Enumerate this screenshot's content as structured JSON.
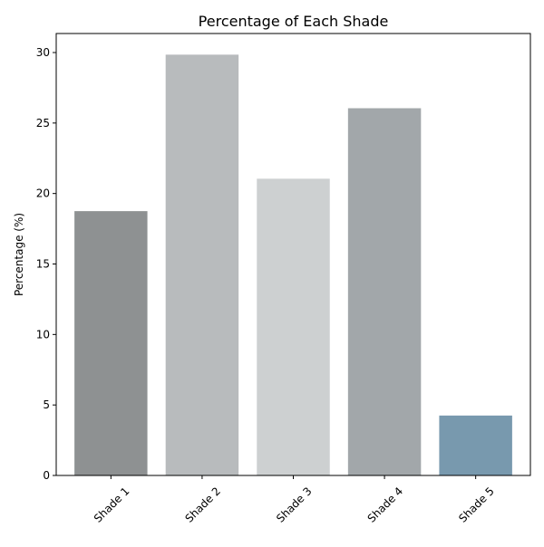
{
  "chart_data": {
    "type": "bar",
    "title": "Percentage of Each Shade",
    "xlabel": "",
    "ylabel": "Percentage (%)",
    "categories": [
      "Shade 1",
      "Shade 2",
      "Shade 3",
      "Shade 4",
      "Shade 5"
    ],
    "values": [
      18.75,
      29.85,
      21.05,
      26.05,
      4.25
    ],
    "colors": [
      "#8e9192",
      "#b8bbbd",
      "#cdd0d1",
      "#a2a7aa",
      "#7899ae"
    ],
    "ylim": [
      0,
      31.35
    ],
    "yticks": [
      0,
      5,
      10,
      15,
      20,
      25,
      30
    ],
    "grid": false,
    "legend": "none"
  }
}
